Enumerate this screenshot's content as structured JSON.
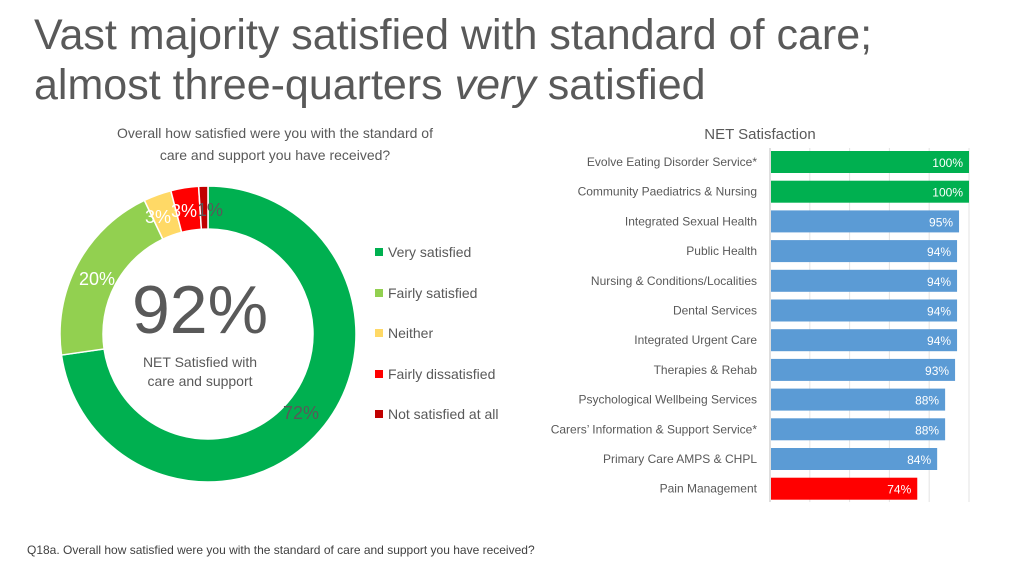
{
  "title": {
    "line1": "Vast majority satisfied with standard of care;",
    "line2_prefix": "almost three-quarters ",
    "line2_emph": "very",
    "line2_suffix": " satisfied"
  },
  "footnote": "Q18a. Overall how satisfied were you with the standard of care and support you have received?",
  "chart_data": [
    {
      "type": "pie",
      "title_line1": "Overall how satisfied were you with the standard of",
      "title_line2": "care and support you have received?",
      "center_value": "92%",
      "center_label_line1": "NET Satisfied with",
      "center_label_line2": "care and support",
      "legend_position": "right",
      "slices": [
        {
          "name": "Very satisfied",
          "value": 72,
          "label": "72%",
          "color": "#00B050"
        },
        {
          "name": "Fairly satisfied",
          "value": 20,
          "label": "20%",
          "color": "#92D050"
        },
        {
          "name": "Neither",
          "value": 3,
          "label": "3%",
          "color": "#FFD966"
        },
        {
          "name": "Fairly dissatisfied",
          "value": 3,
          "label": "3%",
          "color": "#FF0000"
        },
        {
          "name": "Not satisfied at all",
          "value": 1,
          "label": "1%",
          "color": "#C00000"
        }
      ]
    },
    {
      "type": "bar",
      "orientation": "horizontal",
      "title": "NET Satisfaction",
      "xlim": [
        0,
        100
      ],
      "grid": true,
      "categories": [
        "Evolve Eating Disorder Service*",
        "Community Paediatrics & Nursing",
        "Integrated Sexual Health",
        "Public Health",
        "Nursing & Conditions/Localities",
        "Dental Services",
        "Integrated Urgent Care",
        "Therapies & Rehab",
        "Psychological Wellbeing Services",
        "Carers’ Information & Support Service*",
        "Primary Care AMPS & CHPL",
        "Pain Management"
      ],
      "values": [
        100,
        100,
        95,
        94,
        94,
        94,
        94,
        93,
        88,
        88,
        84,
        74
      ],
      "labels": [
        "100%",
        "100%",
        "95%",
        "94%",
        "94%",
        "94%",
        "94%",
        "93%",
        "88%",
        "88%",
        "84%",
        "74%"
      ],
      "colors": [
        "#00B050",
        "#00B050",
        "#5B9BD5",
        "#5B9BD5",
        "#5B9BD5",
        "#5B9BD5",
        "#5B9BD5",
        "#5B9BD5",
        "#5B9BD5",
        "#5B9BD5",
        "#5B9BD5",
        "#FF0000"
      ]
    }
  ]
}
